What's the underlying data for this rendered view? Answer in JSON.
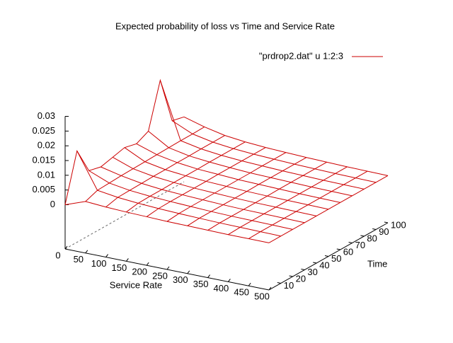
{
  "chart_data": {
    "type": "surface",
    "title": "Expected probability of loss vs Time and Service Rate",
    "xlabel": "Service Rate",
    "ylabel": "Time",
    "legend": "top-right",
    "series": [
      {
        "name": "\"prdrop2.dat\" u 1:2:3",
        "color": "#cc0000"
      }
    ],
    "x": [
      0,
      50,
      100,
      150,
      200,
      250,
      300,
      350,
      400,
      450,
      500
    ],
    "y": [
      0,
      10,
      20,
      30,
      40,
      50,
      60,
      70,
      80,
      90,
      100
    ],
    "z": [
      [
        0,
        0.0025,
        0.002,
        0.0017,
        0.0015,
        0.0013,
        0.0012,
        0.0011,
        0.001,
        0.001,
        0.001
      ],
      [
        0.016,
        0.004,
        0.003,
        0.0024,
        0.002,
        0.0017,
        0.0015,
        0.0013,
        0.0012,
        0.0011,
        0.001
      ],
      [
        0.007,
        0.0042,
        0.0031,
        0.0025,
        0.0021,
        0.0018,
        0.0015,
        0.0013,
        0.0012,
        0.0011,
        0.001
      ],
      [
        0.006,
        0.0044,
        0.0032,
        0.0025,
        0.0021,
        0.0018,
        0.0015,
        0.0013,
        0.0012,
        0.0011,
        0.001
      ],
      [
        0.007,
        0.0045,
        0.0033,
        0.0026,
        0.0021,
        0.0018,
        0.0015,
        0.0013,
        0.0012,
        0.0011,
        0.001
      ],
      [
        0.008,
        0.0046,
        0.0033,
        0.0026,
        0.0021,
        0.0018,
        0.0015,
        0.0013,
        0.0012,
        0.0011,
        0.001
      ],
      [
        0.007,
        0.0047,
        0.0034,
        0.0026,
        0.0022,
        0.0018,
        0.0016,
        0.0014,
        0.0012,
        0.0011,
        0.001
      ],
      [
        0.009,
        0.0048,
        0.0034,
        0.0027,
        0.0022,
        0.0018,
        0.0016,
        0.0014,
        0.0012,
        0.0011,
        0.001
      ],
      [
        0.024,
        0.0049,
        0.0035,
        0.0027,
        0.0022,
        0.0019,
        0.0016,
        0.0014,
        0.0012,
        0.0011,
        0.001
      ],
      [
        0.008,
        0.0049,
        0.0035,
        0.0027,
        0.0022,
        0.0019,
        0.0016,
        0.0014,
        0.0012,
        0.0011,
        0.001
      ],
      [
        0.007,
        0.005,
        0.0035,
        0.0027,
        0.0022,
        0.0019,
        0.0016,
        0.0014,
        0.0012,
        0.0011,
        0.001
      ]
    ],
    "xlim": [
      0,
      500
    ],
    "ylim": [
      0,
      100
    ],
    "zlim": [
      0,
      0.03
    ],
    "ticslevel": 0.5,
    "xticks": [
      0,
      50,
      100,
      150,
      200,
      250,
      300,
      350,
      400,
      450,
      500
    ],
    "yticks": [
      10,
      20,
      30,
      40,
      50,
      60,
      70,
      80,
      90,
      100
    ],
    "zticks": [
      0,
      0.005,
      0.01,
      0.015,
      0.02,
      0.025,
      0.03
    ]
  }
}
